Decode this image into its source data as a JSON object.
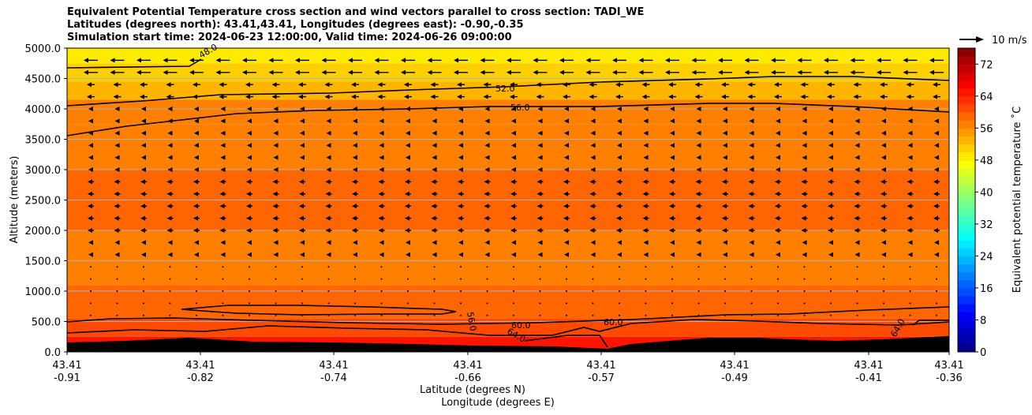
{
  "title_lines": [
    "Equivalent Potential Temperature cross section and wind vectors parallel to cross section: TADI_WE",
    "Latitudes (degrees north): 43.41,43.41, Longitudes (degrees east): -0.90,-0.35",
    "Simulation start time: 2024-06-23 12:00:00, Valid time: 2024-06-26 09:00:00"
  ],
  "quiver_key": "10 m/s",
  "chart_data": {
    "type": "heatmap",
    "title": "Equivalent Potential Temperature cross section and wind vectors parallel to cross section: TADI_WE",
    "xlabel_lat": "Latitude (degrees N)",
    "xlabel_lon": "Longitude (degrees E)",
    "ylabel": "Altitude (meters)",
    "ylim": [
      0,
      5000
    ],
    "y_ticks": [
      "0.0",
      "500.0",
      "1000.0",
      "1500.0",
      "2000.0",
      "2500.0",
      "3000.0",
      "3500.0",
      "4000.0",
      "4500.0",
      "5000.0"
    ],
    "x_ticks": [
      {
        "lat": "43.41",
        "lon": "-0.91"
      },
      {
        "lat": "43.41",
        "lon": "-0.82"
      },
      {
        "lat": "43.41",
        "lon": "-0.74"
      },
      {
        "lat": "43.41",
        "lon": "-0.66"
      },
      {
        "lat": "43.41",
        "lon": "-0.57"
      },
      {
        "lat": "43.41",
        "lon": "-0.49"
      },
      {
        "lat": "43.41",
        "lon": "-0.41"
      },
      {
        "lat": "43.41",
        "lon": "-0.36"
      }
    ],
    "grid": "horizontal",
    "colorbar": {
      "label": "Equivalent potential temperature ˚C",
      "range": [
        0,
        76
      ],
      "ticks": [
        "0",
        "8",
        "16",
        "24",
        "32",
        "40",
        "48",
        "56",
        "64",
        "72"
      ],
      "colormap": "jet"
    },
    "contour_labels": [
      "48.0",
      "52.0",
      "56.0",
      "56.0",
      "60.0",
      "60.0",
      "64.0",
      "64.0"
    ],
    "theta_e_profile": [
      {
        "alt": 100,
        "value": 64
      },
      {
        "alt": 400,
        "value": 61
      },
      {
        "alt": 700,
        "value": 58
      },
      {
        "alt": 1500,
        "value": 57
      },
      {
        "alt": 2500,
        "value": 58
      },
      {
        "alt": 3500,
        "value": 57
      },
      {
        "alt": 4000,
        "value": 56
      },
      {
        "alt": 4300,
        "value": 53
      },
      {
        "alt": 4600,
        "value": 51
      },
      {
        "alt": 4900,
        "value": 48
      }
    ],
    "wind": "westward (toward -x) vectors, strongest above 4000 m"
  }
}
